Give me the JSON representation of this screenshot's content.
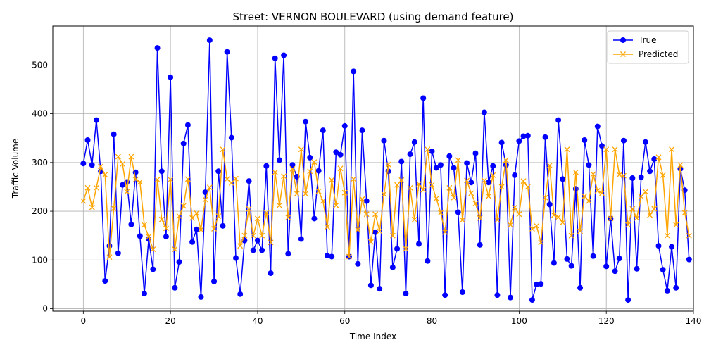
{
  "chart_data": {
    "type": "line",
    "title": "Street: VERNON BOULEVARD (using demand feature)",
    "xlabel": "Time Index",
    "ylabel": "Traffic Volume",
    "xlim": [
      -7,
      140
    ],
    "ylim": [
      -5,
      580
    ],
    "grid": true,
    "legend_position": "top-right",
    "x_ticks": [
      0,
      20,
      40,
      60,
      80,
      100,
      120,
      140
    ],
    "y_ticks": [
      0,
      100,
      200,
      300,
      400,
      500
    ],
    "series": [
      {
        "name": "True",
        "color": "#0000ff",
        "marker": "circle",
        "values": [
          298,
          346,
          295,
          387,
          282,
          57,
          129,
          358,
          114,
          254,
          260,
          173,
          280,
          149,
          31,
          143,
          81,
          535,
          282,
          148,
          475,
          43,
          96,
          339,
          377,
          137,
          163,
          24,
          239,
          551,
          56,
          282,
          170,
          527,
          351,
          104,
          30,
          140,
          262,
          120,
          140,
          120,
          293,
          73,
          514,
          305,
          520,
          113,
          295,
          271,
          143,
          384,
          310,
          185,
          283,
          366,
          109,
          107,
          321,
          316,
          375,
          107,
          487,
          92,
          366,
          221,
          48,
          157,
          41,
          345,
          282,
          85,
          123,
          302,
          31,
          317,
          342,
          133,
          432,
          98,
          323,
          289,
          295,
          28,
          313,
          289,
          198,
          34,
          299,
          259,
          319,
          131,
          403,
          259,
          293,
          28,
          341,
          295,
          23,
          274,
          344,
          354,
          355,
          18,
          50,
          51,
          352,
          214,
          94,
          387,
          266,
          102,
          88,
          246,
          43,
          346,
          295,
          108,
          374,
          334,
          87,
          185,
          77,
          103,
          345,
          18,
          268,
          82,
          270,
          342,
          282,
          307,
          129,
          80,
          37,
          127,
          43,
          287,
          243,
          101
        ]
      },
      {
        "name": "Predicted",
        "color": "#ffa500",
        "marker": "x",
        "values": [
          221,
          248,
          208,
          248,
          292,
          275,
          106,
          206,
          312,
          297,
          240,
          312,
          265,
          260,
          172,
          148,
          122,
          265,
          183,
          165,
          265,
          122,
          190,
          211,
          266,
          186,
          196,
          162,
          224,
          249,
          164,
          190,
          327,
          266,
          258,
          267,
          129,
          150,
          205,
          150,
          185,
          150,
          197,
          136,
          280,
          212,
          272,
          187,
          287,
          236,
          327,
          236,
          282,
          301,
          241,
          221,
          168,
          264,
          212,
          288,
          238,
          107,
          266,
          162,
          225,
          194,
          137,
          194,
          159,
          235,
          296,
          150,
          254,
          264,
          123,
          248,
          183,
          256,
          244,
          327,
          254,
          226,
          197,
          157,
          248,
          228,
          305,
          182,
          263,
          237,
          216,
          186,
          263,
          231,
          274,
          182,
          250,
          305,
          172,
          208,
          194,
          262,
          250,
          164,
          170,
          136,
          228,
          294,
          192,
          188,
          177,
          327,
          150,
          280,
          159,
          231,
          221,
          276,
          242,
          237,
          327,
          185,
          327,
          275,
          273,
          172,
          205,
          186,
          230,
          240,
          192,
          205,
          311,
          274,
          150,
          327,
          172,
          295,
          197,
          150
        ]
      }
    ]
  }
}
